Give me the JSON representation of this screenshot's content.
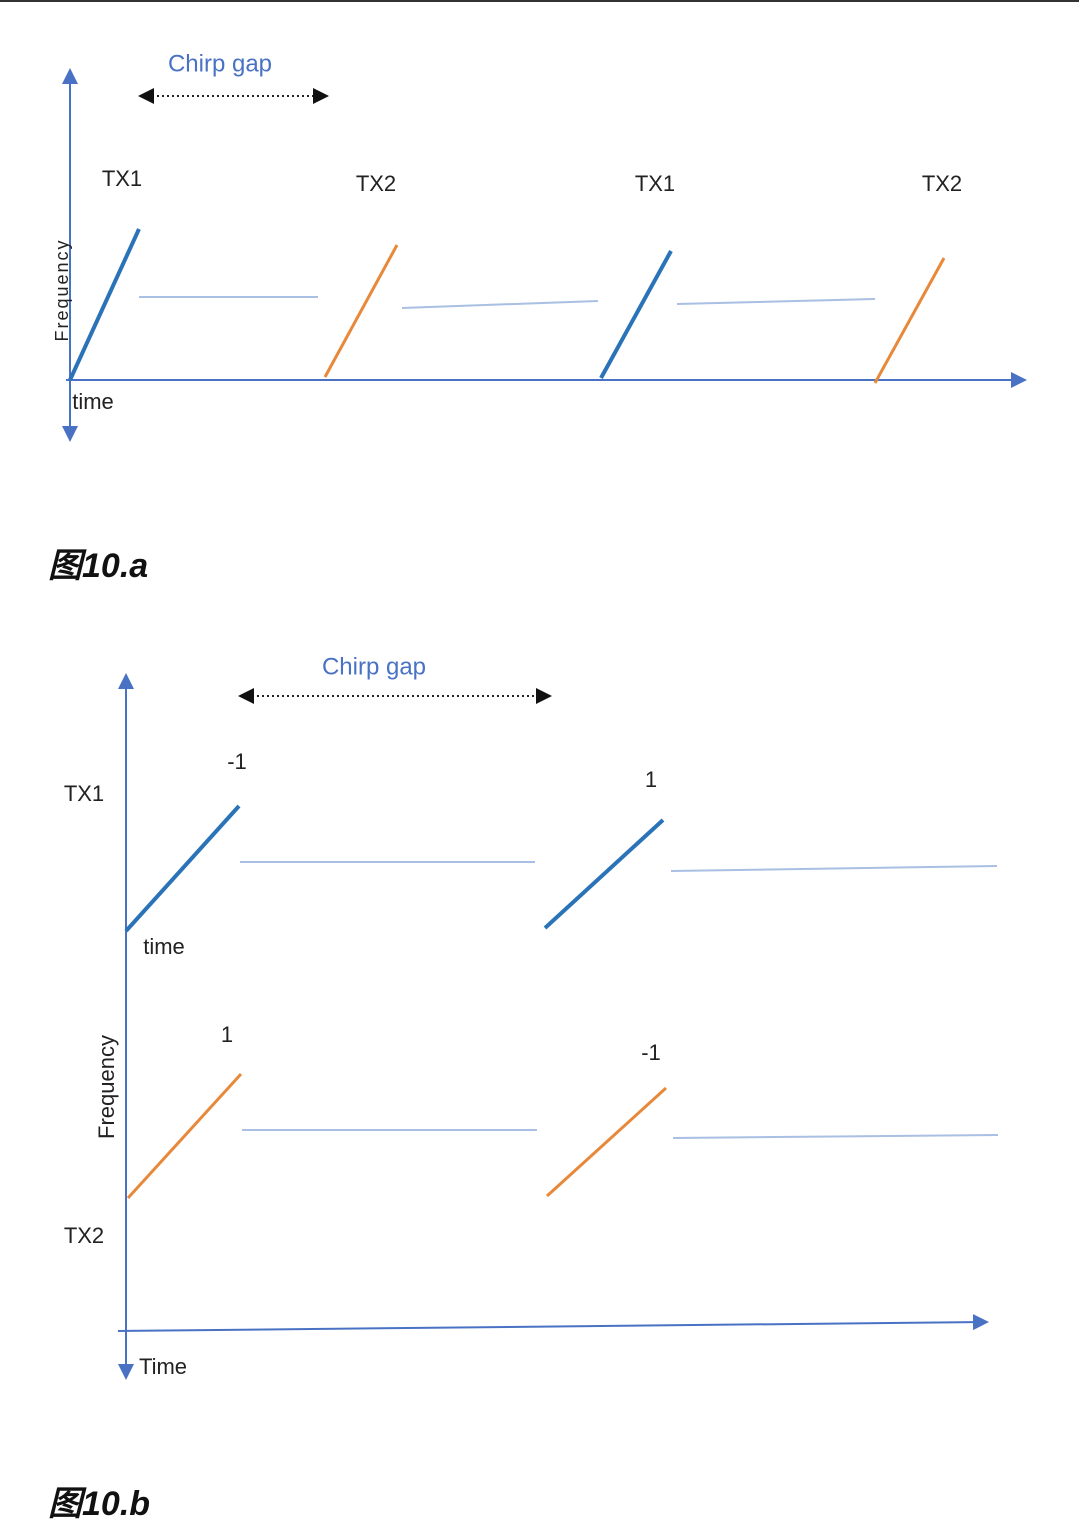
{
  "figures": [
    {
      "chirp_gap": "Chirp gap",
      "tx_labels": [
        "TX1",
        "TX2",
        "TX1",
        "TX2"
      ],
      "y_axis": "Frequency",
      "x_axis": "time",
      "caption": "图10.a"
    },
    {
      "chirp_gap": "Chirp gap",
      "phase_labels": [
        "-1",
        "1",
        "1",
        "-1"
      ],
      "tx_labels": [
        "TX1",
        "TX2"
      ],
      "time_label": "time",
      "y_axis": "Frequency",
      "x_axis": "Time",
      "caption": "图10.b"
    }
  ]
}
